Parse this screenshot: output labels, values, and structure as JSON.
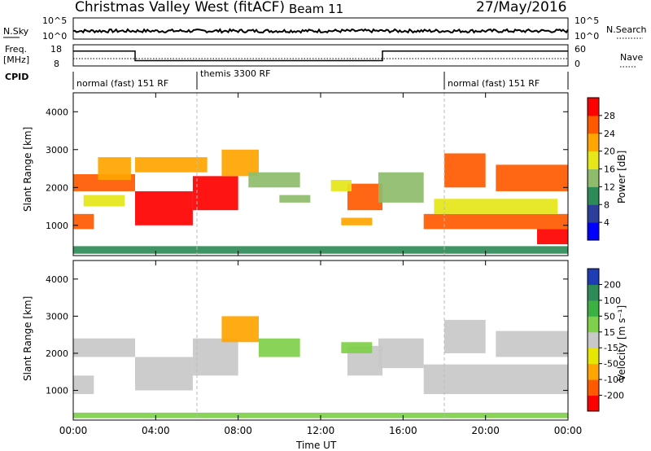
{
  "header": {
    "title": "Christmas Valley West (fitACF)",
    "beam": "Beam 11",
    "date": "27/May/2016"
  },
  "top_panels": {
    "nsky_label": "N.Sky",
    "nsky_ticks": [
      "10^5",
      "10^0"
    ],
    "nsearch_label": "N.Search",
    "nsearch_ticks": [
      "10^5",
      "10^0"
    ],
    "freq_label": "Freq.",
    "freq_unit": "[MHz]",
    "freq_ticks": [
      "18",
      "8"
    ],
    "nave_label": "Nave",
    "nave_ticks": [
      "60",
      "0"
    ],
    "cpid_label": "CPID",
    "cpid_segments": [
      {
        "label": "normal (fast) 151 RF",
        "start_h": 0,
        "end_h": 6
      },
      {
        "label": "themis 3300 RF",
        "start_h": 6,
        "end_h": 18
      },
      {
        "label": "normal (fast) 151 RF",
        "start_h": 18,
        "end_h": 24
      }
    ],
    "freq_series": [
      {
        "h": 0,
        "mhz": 15
      },
      {
        "h": 3,
        "mhz": 15
      },
      {
        "h": 3,
        "mhz": 10.5
      },
      {
        "h": 15,
        "mhz": 10.5
      },
      {
        "h": 15,
        "mhz": 15
      },
      {
        "h": 24,
        "mhz": 15
      }
    ]
  },
  "chart_data": [
    {
      "type": "heatmap",
      "panel": "power",
      "ylabel": "Slant Range [km]",
      "ylim": [
        200,
        4500
      ],
      "yticks": [
        "4000",
        "3000",
        "2000",
        "1000"
      ],
      "xlim_hours": [
        0,
        24
      ],
      "colorbar_label": "Power [dB]",
      "colorbar_ticks": [
        "28",
        "24",
        "20",
        "16",
        "12",
        "8",
        "4"
      ],
      "colormap": [
        "#0000ff",
        "#2b3f9a",
        "#2e8b57",
        "#8fbc6c",
        "#e6e619",
        "#ffa500",
        "#ff5a00",
        "#ff0000"
      ],
      "regions": [
        {
          "t0": 0.0,
          "t1": 3.0,
          "r0": 1900,
          "r1": 2350,
          "level": 6
        },
        {
          "t0": 1.2,
          "t1": 2.8,
          "r0": 2200,
          "r1": 2800,
          "level": 5
        },
        {
          "t0": 3.0,
          "t1": 5.8,
          "r0": 1000,
          "r1": 1900,
          "level": 7
        },
        {
          "t0": 5.8,
          "t1": 8.0,
          "r0": 1400,
          "r1": 2300,
          "level": 7
        },
        {
          "t0": 7.2,
          "t1": 9.0,
          "r0": 2300,
          "r1": 3000,
          "level": 5
        },
        {
          "t0": 0.0,
          "t1": 1.0,
          "r0": 900,
          "r1": 1300,
          "level": 6
        },
        {
          "t0": 0.5,
          "t1": 2.5,
          "r0": 1500,
          "r1": 1800,
          "level": 4
        },
        {
          "t0": 3.0,
          "t1": 6.5,
          "r0": 2400,
          "r1": 2800,
          "level": 5
        },
        {
          "t0": 8.5,
          "t1": 11.0,
          "r0": 2000,
          "r1": 2400,
          "level": 3
        },
        {
          "t0": 10.0,
          "t1": 11.5,
          "r0": 1600,
          "r1": 1800,
          "level": 3
        },
        {
          "t0": 13.3,
          "t1": 15.0,
          "r0": 1400,
          "r1": 2100,
          "level": 6
        },
        {
          "t0": 13.0,
          "t1": 14.5,
          "r0": 1000,
          "r1": 1200,
          "level": 5
        },
        {
          "t0": 12.5,
          "t1": 13.5,
          "r0": 1900,
          "r1": 2200,
          "level": 4
        },
        {
          "t0": 14.8,
          "t1": 17.0,
          "r0": 1600,
          "r1": 2400,
          "level": 3
        },
        {
          "t0": 17.0,
          "t1": 24.0,
          "r0": 900,
          "r1": 1300,
          "level": 6
        },
        {
          "t0": 17.5,
          "t1": 23.5,
          "r0": 1300,
          "r1": 1700,
          "level": 4
        },
        {
          "t0": 18.0,
          "t1": 20.0,
          "r0": 2000,
          "r1": 2900,
          "level": 6
        },
        {
          "t0": 20.5,
          "t1": 24.0,
          "r0": 1900,
          "r1": 2600,
          "level": 6
        },
        {
          "t0": 22.5,
          "t1": 24.0,
          "r0": 500,
          "r1": 900,
          "level": 7
        },
        {
          "t0": 0.0,
          "t1": 24.0,
          "r0": 250,
          "r1": 450,
          "level": 2
        }
      ]
    },
    {
      "type": "heatmap",
      "panel": "velocity",
      "ylabel": "Slant Range [km]",
      "ylim": [
        200,
        4500
      ],
      "yticks": [
        "4000",
        "3000",
        "2000",
        "1000"
      ],
      "xlabel": "Time UT",
      "xlim_hours": [
        0,
        24
      ],
      "xticks": [
        "00:00",
        "04:00",
        "08:00",
        "12:00",
        "16:00",
        "20:00",
        "00:00"
      ],
      "colorbar_label": "Velocity [m s⁻¹]",
      "colorbar_ticks": [
        "200",
        "100",
        "50",
        "15",
        "-15",
        "-50",
        "-100",
        "-200"
      ],
      "colormap": [
        "#ff0000",
        "#ff5a00",
        "#ffa500",
        "#e6e600",
        "#c8c8c8",
        "#7fd04a",
        "#3cb043",
        "#2e8b57",
        "#1e3cb4"
      ],
      "regions": [
        {
          "t0": 0.0,
          "t1": 3.0,
          "r0": 1900,
          "r1": 2400,
          "level": 4
        },
        {
          "t0": 3.0,
          "t1": 5.8,
          "r0": 1000,
          "r1": 1900,
          "level": 4
        },
        {
          "t0": 5.8,
          "t1": 8.0,
          "r0": 1400,
          "r1": 2400,
          "level": 4
        },
        {
          "t0": 0.0,
          "t1": 1.0,
          "r0": 900,
          "r1": 1400,
          "level": 4
        },
        {
          "t0": 7.2,
          "t1": 9.0,
          "r0": 2300,
          "r1": 3000,
          "level": 2
        },
        {
          "t0": 9.0,
          "t1": 11.0,
          "r0": 1900,
          "r1": 2400,
          "level": 5
        },
        {
          "t0": 13.3,
          "t1": 15.0,
          "r0": 1400,
          "r1": 2200,
          "level": 4
        },
        {
          "t0": 13.0,
          "t1": 14.5,
          "r0": 2000,
          "r1": 2300,
          "level": 5
        },
        {
          "t0": 14.8,
          "t1": 17.0,
          "r0": 1600,
          "r1": 2400,
          "level": 4
        },
        {
          "t0": 17.0,
          "t1": 24.0,
          "r0": 900,
          "r1": 1700,
          "level": 4
        },
        {
          "t0": 18.0,
          "t1": 20.0,
          "r0": 2000,
          "r1": 2900,
          "level": 4
        },
        {
          "t0": 20.5,
          "t1": 24.0,
          "r0": 1900,
          "r1": 2600,
          "level": 4
        },
        {
          "t0": 0.0,
          "t1": 24.0,
          "r0": 250,
          "r1": 400,
          "level": 5
        }
      ]
    }
  ]
}
